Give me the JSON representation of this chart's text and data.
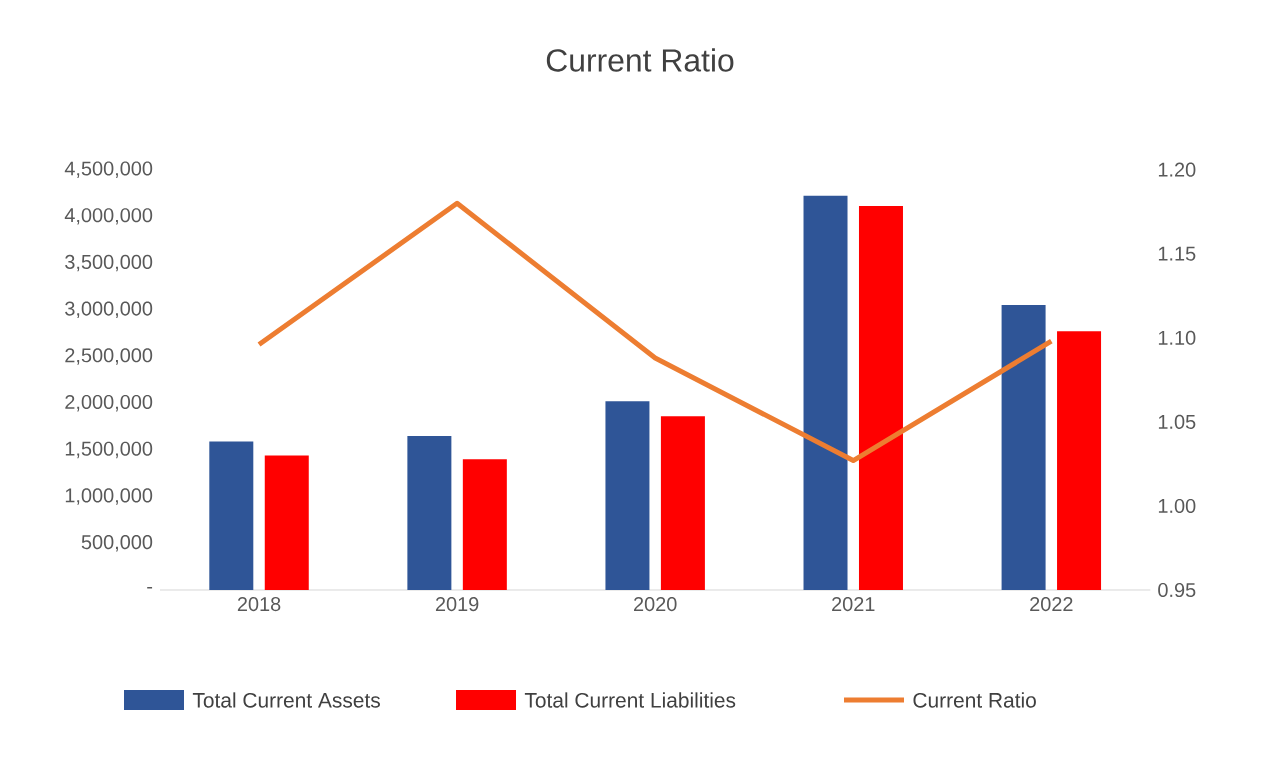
{
  "chart_data": {
    "type": "bar",
    "title": "Current Ratio",
    "categories": [
      "2018",
      "2019",
      "2020",
      "2021",
      "2022"
    ],
    "series": [
      {
        "name": "Total Current Assets",
        "color": "#2f5597",
        "values": [
          1590000,
          1650000,
          2020000,
          4220000,
          3050000
        ]
      },
      {
        "name": "Total Current Liabilities",
        "color": "#ff0000",
        "values": [
          1440000,
          1400000,
          1860000,
          4110000,
          2770000
        ]
      },
      {
        "name": "Current Ratio",
        "type": "line",
        "axis": "y2",
        "color": "#ed7d31",
        "values": [
          1.096,
          1.18,
          1.088,
          1.027,
          1.098
        ]
      }
    ],
    "ylim": [
      0,
      4500000
    ],
    "yticks": [
      {
        "value": 0,
        "label": "-"
      },
      {
        "value": 500000,
        "label": "500,000"
      },
      {
        "value": 1000000,
        "label": "1,000,000"
      },
      {
        "value": 1500000,
        "label": "1,500,000"
      },
      {
        "value": 2000000,
        "label": "2,000,000"
      },
      {
        "value": 2500000,
        "label": "2,500,000"
      },
      {
        "value": 3000000,
        "label": "3,000,000"
      },
      {
        "value": 3500000,
        "label": "3,500,000"
      },
      {
        "value": 4000000,
        "label": "4,000,000"
      },
      {
        "value": 4500000,
        "label": "4,500,000"
      }
    ],
    "y2lim": [
      0.95,
      1.2
    ],
    "y2ticks": [
      {
        "value": 0.95,
        "label": "0.95"
      },
      {
        "value": 1.0,
        "label": "1.00"
      },
      {
        "value": 1.05,
        "label": "1.05"
      },
      {
        "value": 1.1,
        "label": "1.10"
      },
      {
        "value": 1.15,
        "label": "1.15"
      },
      {
        "value": 1.2,
        "label": "1.20"
      }
    ],
    "grid": false,
    "legend": "bottom"
  }
}
